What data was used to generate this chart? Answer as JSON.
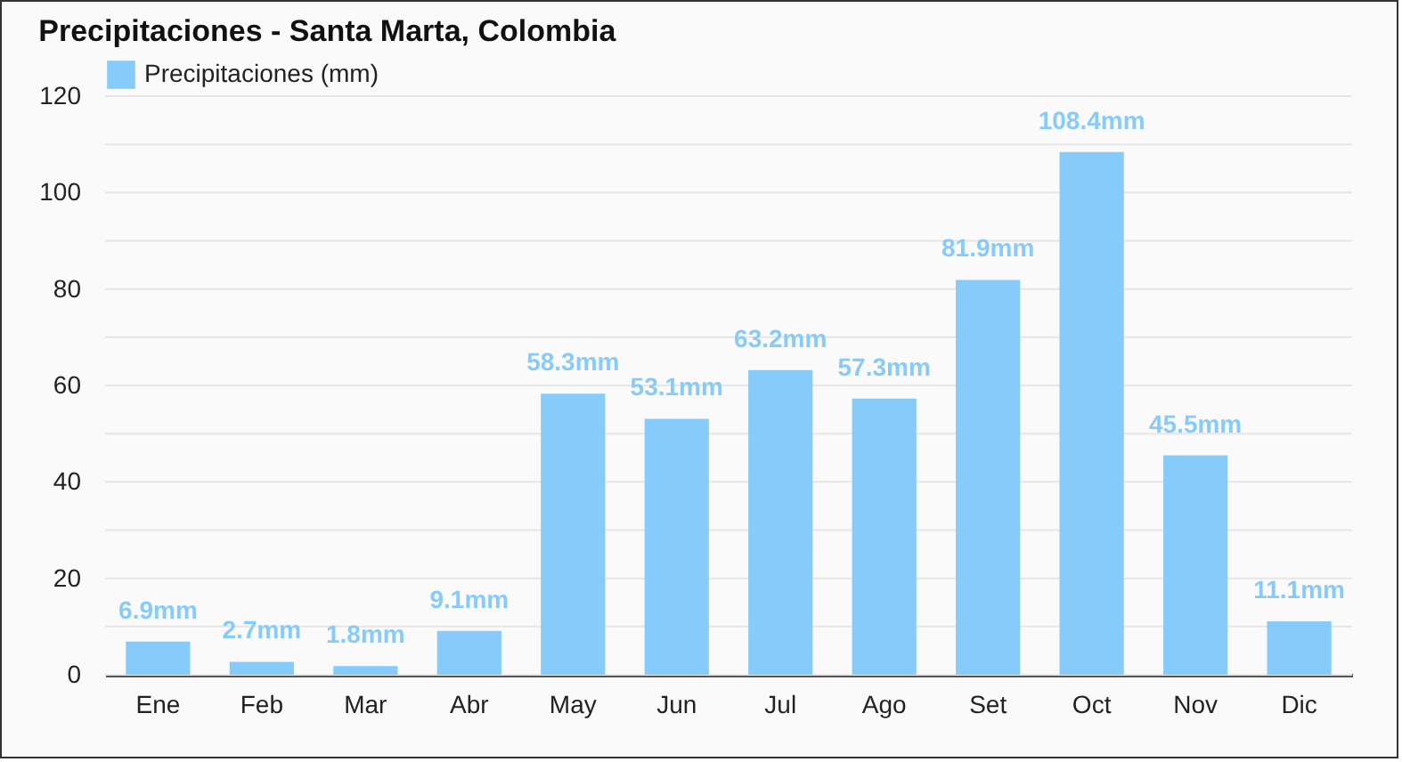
{
  "chart_data": {
    "type": "bar",
    "title": "Precipitaciones - Santa Marta, Colombia",
    "categories": [
      "Ene",
      "Feb",
      "Mar",
      "Abr",
      "May",
      "Jun",
      "Jul",
      "Ago",
      "Set",
      "Oct",
      "Nov",
      "Dic"
    ],
    "series": [
      {
        "name": "Precipitaciones (mm)",
        "color": "#87cbfa",
        "values": [
          6.9,
          2.7,
          1.8,
          9.1,
          58.3,
          53.1,
          63.2,
          57.3,
          81.9,
          108.4,
          45.5,
          11.1
        ],
        "value_labels": [
          "6.9mm",
          "2.7mm",
          "1.8mm",
          "9.1mm",
          "58.3mm",
          "53.1mm",
          "63.2mm",
          "57.3mm",
          "81.9mm",
          "108.4mm",
          "45.5mm",
          "11.1mm"
        ]
      }
    ],
    "ylim": [
      0,
      120
    ],
    "yticks": [
      0,
      {
        "value": 10,
        "label": null
      },
      20,
      {
        "value": 30,
        "label": null
      },
      40,
      {
        "value": 50,
        "label": null
      },
      60,
      {
        "value": 70,
        "label": null
      },
      80,
      {
        "value": 90,
        "label": null
      },
      100,
      {
        "value": 110,
        "label": null
      },
      120
    ],
    "grid": "y",
    "legend": "top left"
  }
}
